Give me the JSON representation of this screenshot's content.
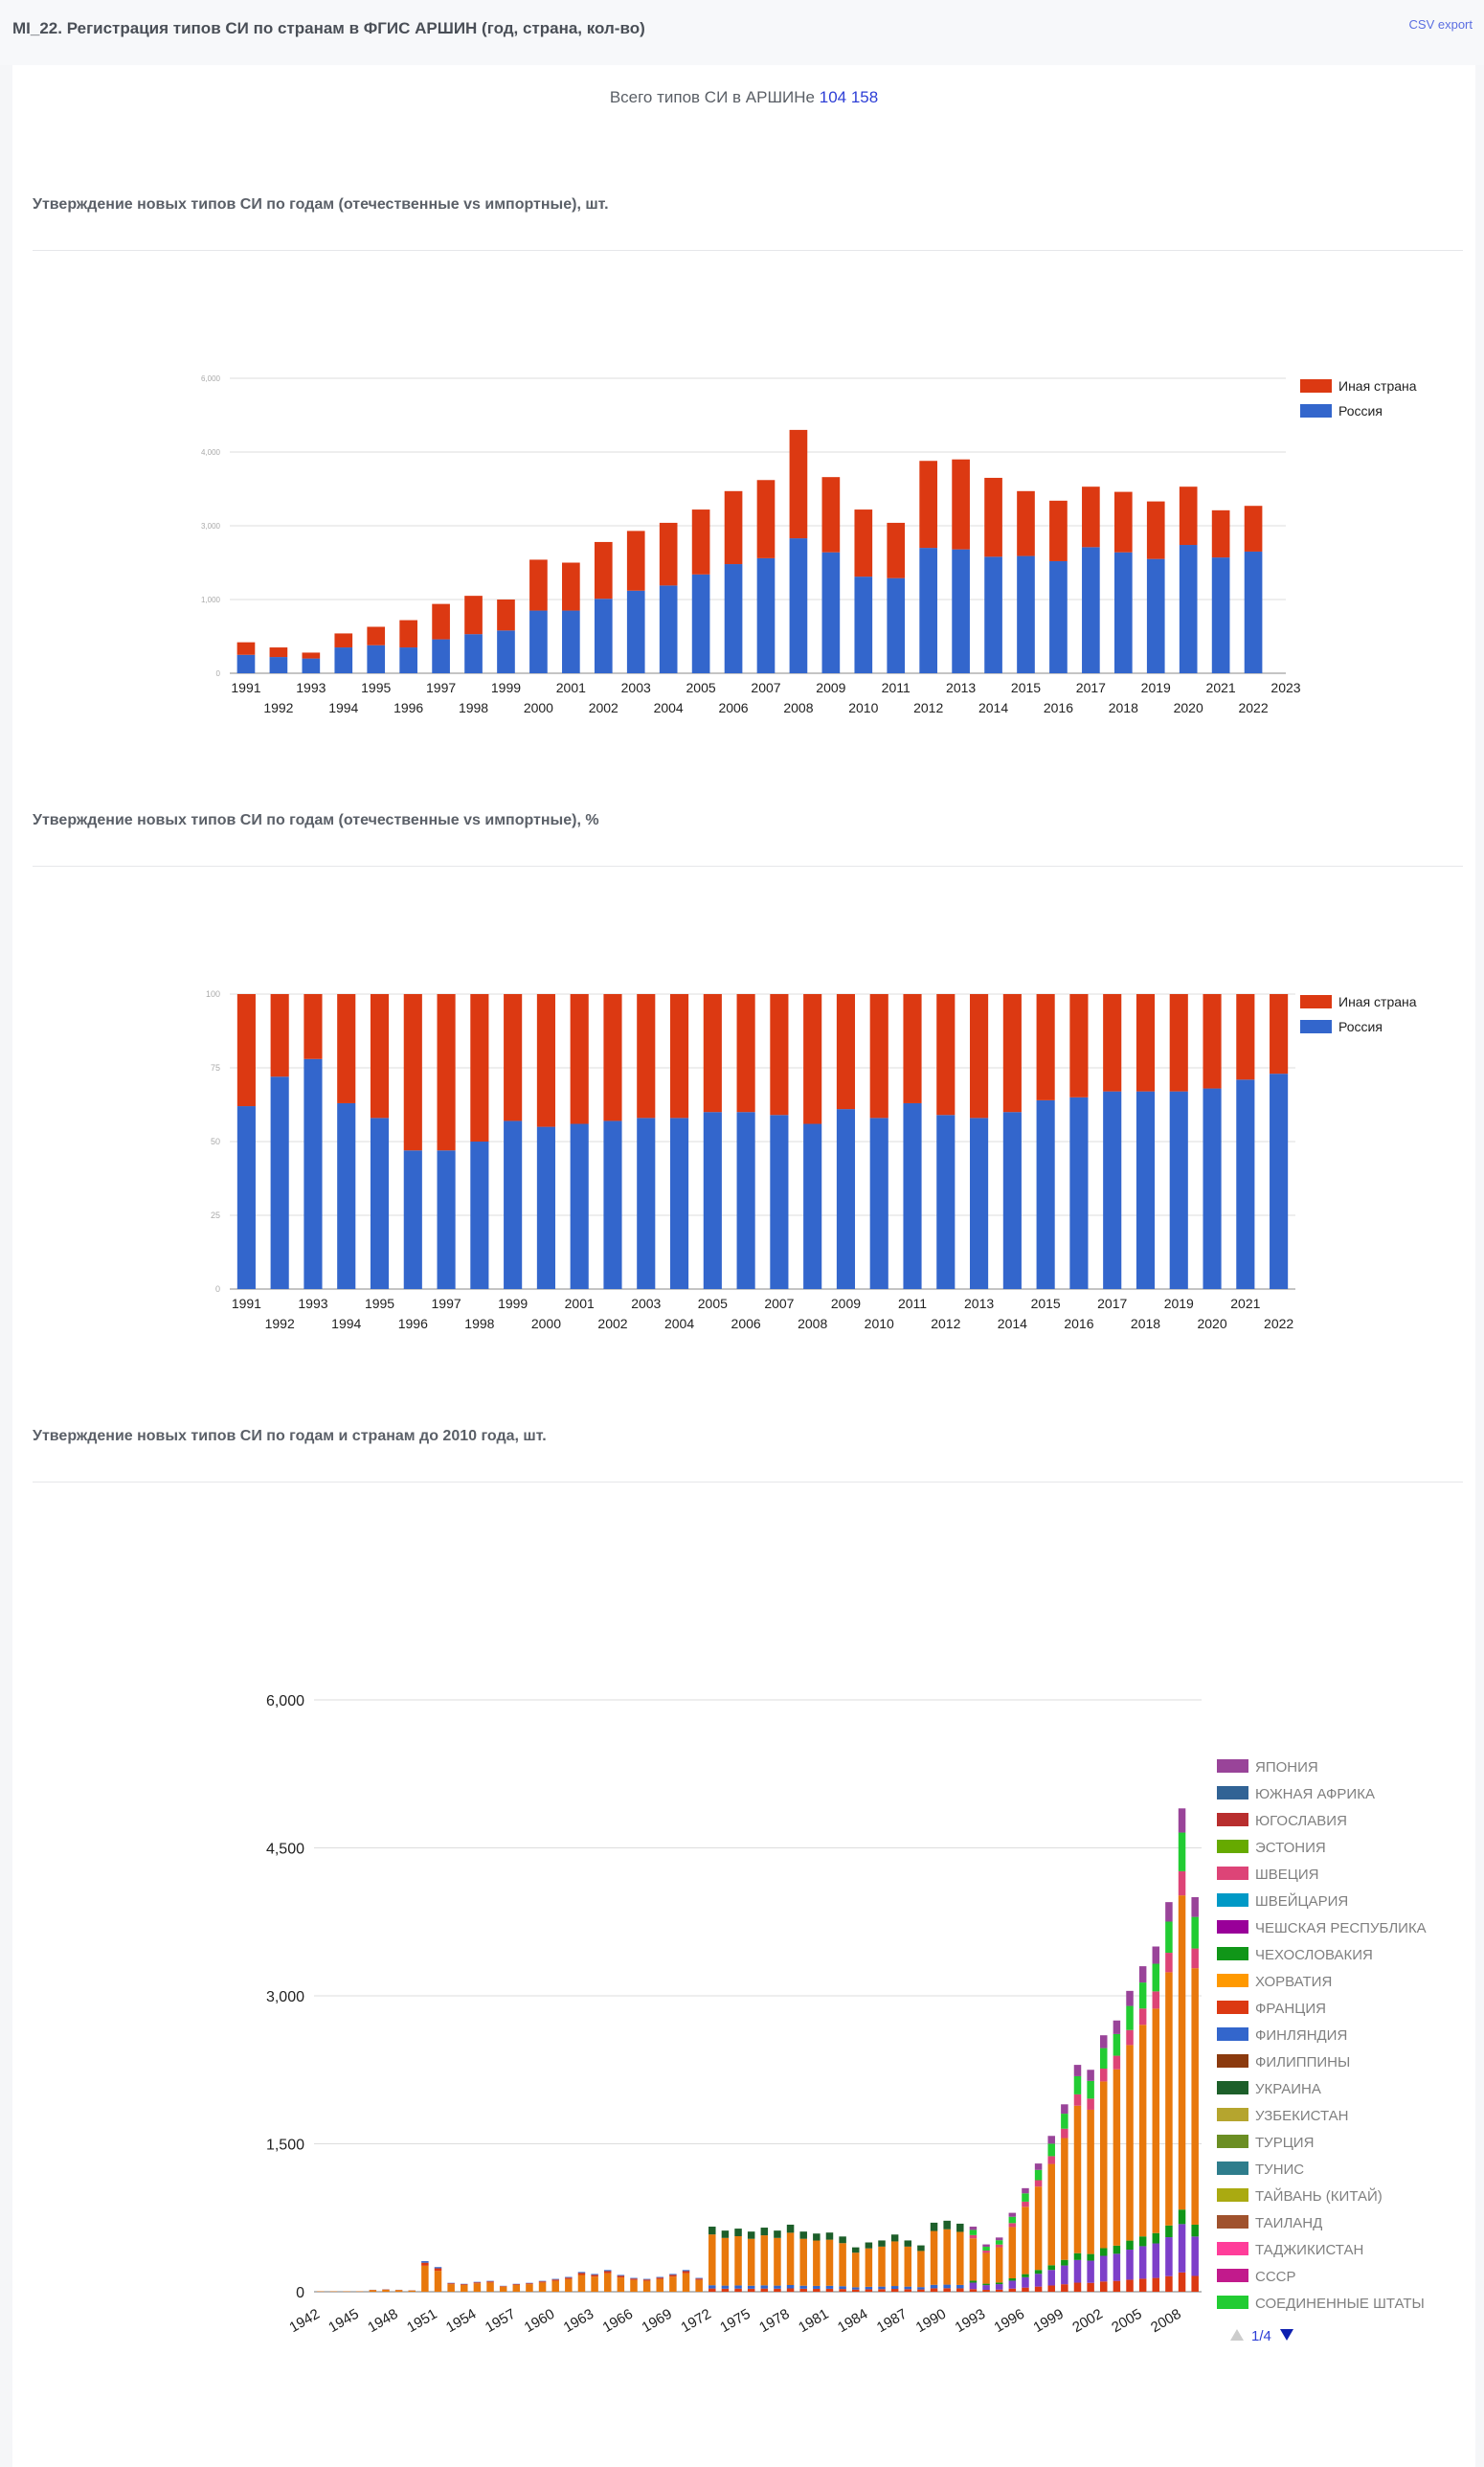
{
  "header": {
    "title": "MI_22. Регистрация типов СИ по странам в ФГИС АРШИН (год, страна, кол-во)",
    "csv_export": "CSV export"
  },
  "summary": {
    "label": "Всего типов СИ в АРШИНе",
    "value": "104 158"
  },
  "sections": [
    {
      "title": "Утверждение новых типов СИ по годам (отечественные vs импортные), шт."
    },
    {
      "title": "Утверждение новых типов СИ по годам (отечественные vs импортные), %"
    },
    {
      "title": "Утверждение новых типов СИ по годам и странам до 2010 года, шт."
    }
  ],
  "colors": {
    "russia": "#3366cc",
    "other": "#dc3912"
  },
  "chart_data": [
    {
      "type": "bar",
      "stacked": true,
      "title": "Утверждение новых типов СИ по годам (отечественные vs импортные), шт.",
      "categories": [
        "1991",
        "1992",
        "1993",
        "1994",
        "1995",
        "1996",
        "1997",
        "1998",
        "1999",
        "2000",
        "2001",
        "2002",
        "2003",
        "2004",
        "2005",
        "2006",
        "2007",
        "2008",
        "2009",
        "2010",
        "2011",
        "2012",
        "2013",
        "2014",
        "2015",
        "2016",
        "2017",
        "2018",
        "2019",
        "2020",
        "2021",
        "2022"
      ],
      "x_axis_extra_label": "2023",
      "y_ticks": [
        "0",
        "1,000",
        "3,000",
        "4,000",
        "6,000"
      ],
      "ylim": [
        0,
        4000
      ],
      "series": [
        {
          "name": "Россия",
          "values": [
            250,
            220,
            200,
            350,
            380,
            350,
            460,
            530,
            580,
            850,
            850,
            1010,
            1120,
            1190,
            1340,
            1480,
            1560,
            1830,
            1640,
            1310,
            1290,
            1700,
            1680,
            1580,
            1590,
            1520,
            1710,
            1640,
            1550,
            1740,
            1570,
            1650
          ]
        },
        {
          "name": "Иная страна",
          "values": [
            170,
            130,
            80,
            190,
            250,
            370,
            480,
            520,
            420,
            690,
            650,
            770,
            810,
            850,
            880,
            990,
            1060,
            1470,
            1020,
            910,
            750,
            1180,
            1220,
            1070,
            880,
            820,
            820,
            820,
            780,
            790,
            640,
            620
          ]
        }
      ],
      "legend": [
        "Иная страна",
        "Россия"
      ],
      "legend_position": "right"
    },
    {
      "type": "bar",
      "stacked": true,
      "title": "Утверждение новых типов СИ по годам (отечественные vs импортные), %",
      "categories": [
        "1991",
        "1992",
        "1993",
        "1994",
        "1995",
        "1996",
        "1997",
        "1998",
        "1999",
        "2000",
        "2001",
        "2002",
        "2003",
        "2004",
        "2005",
        "2006",
        "2007",
        "2008",
        "2009",
        "2010",
        "2011",
        "2012",
        "2013",
        "2014",
        "2015",
        "2016",
        "2017",
        "2018",
        "2019",
        "2020",
        "2021",
        "2022"
      ],
      "y_ticks": [
        "0",
        "25",
        "50",
        "75",
        "100"
      ],
      "ylim": [
        0,
        100
      ],
      "series": [
        {
          "name": "Россия",
          "values": [
            62,
            72,
            78,
            63,
            58,
            47,
            47,
            50,
            57,
            55,
            56,
            57,
            58,
            58,
            60,
            60,
            59,
            56,
            61,
            58,
            63,
            59,
            58,
            60,
            64,
            65,
            67,
            67,
            67,
            68,
            71,
            73
          ]
        },
        {
          "name": "Иная страна",
          "values": [
            38,
            28,
            22,
            37,
            42,
            53,
            53,
            50,
            43,
            45,
            44,
            43,
            42,
            42,
            40,
            40,
            41,
            44,
            39,
            42,
            37,
            41,
            42,
            40,
            36,
            35,
            33,
            33,
            33,
            32,
            29,
            27
          ]
        }
      ],
      "legend": [
        "Иная страна",
        "Россия"
      ],
      "legend_position": "right"
    },
    {
      "type": "bar",
      "stacked": true,
      "title": "Утверждение новых типов СИ по годам и странам до 2010 года, шт.",
      "x_tick_labels": [
        "1942",
        "1945",
        "1948",
        "1951",
        "1954",
        "1957",
        "1960",
        "1963",
        "1966",
        "1969",
        "1972",
        "1975",
        "1978",
        "1981",
        "1984",
        "1987",
        "1990",
        "1993",
        "1996",
        "1999",
        "2002",
        "2005",
        "2008"
      ],
      "x_start": 1942,
      "totals": [
        5,
        5,
        5,
        5,
        20,
        25,
        20,
        15,
        310,
        250,
        90,
        80,
        100,
        110,
        60,
        80,
        90,
        110,
        130,
        150,
        200,
        180,
        220,
        170,
        140,
        130,
        150,
        180,
        220,
        140,
        660,
        620,
        640,
        610,
        650,
        620,
        680,
        610,
        590,
        600,
        560,
        450,
        500,
        520,
        580,
        520,
        470,
        700,
        720,
        690,
        660,
        480,
        550,
        800,
        1050,
        1300,
        1580,
        1900,
        2300,
        2250,
        2600,
        2750,
        3050,
        3300,
        3500,
        3950,
        4900,
        4000
      ],
      "y_ticks": [
        "0",
        "1,500",
        "3,000",
        "4,500",
        "6,000"
      ],
      "ylim": [
        0,
        6000
      ],
      "legend": [
        {
          "name": "ЯПОНИЯ",
          "color": "#994499"
        },
        {
          "name": "ЮЖНАЯ АФРИКА",
          "color": "#316395"
        },
        {
          "name": "ЮГОСЛАВИЯ",
          "color": "#b82e2e"
        },
        {
          "name": "ЭСТОНИЯ",
          "color": "#66aa00"
        },
        {
          "name": "ШВЕЦИЯ",
          "color": "#dd4477"
        },
        {
          "name": "ШВЕЙЦАРИЯ",
          "color": "#0099c6"
        },
        {
          "name": "ЧЕШСКАЯ РЕСПУБЛИКА",
          "color": "#990099"
        },
        {
          "name": "ЧЕХОСЛОВАКИЯ",
          "color": "#109618"
        },
        {
          "name": "ХОРВАТИЯ",
          "color": "#ff9900"
        },
        {
          "name": "ФРАНЦИЯ",
          "color": "#dc3912"
        },
        {
          "name": "ФИНЛЯНДИЯ",
          "color": "#3366cc"
        },
        {
          "name": "ФИЛИППИНЫ",
          "color": "#8b3a0e"
        },
        {
          "name": "УКРАИНА",
          "color": "#1d5f2a"
        },
        {
          "name": "УЗБЕКИСТАН",
          "color": "#b5a52e"
        },
        {
          "name": "ТУРЦИЯ",
          "color": "#6b8e23"
        },
        {
          "name": "ТУНИС",
          "color": "#2e7d8c"
        },
        {
          "name": "ТАЙВАНЬ (КИТАЙ)",
          "color": "#aaaa11"
        },
        {
          "name": "ТАИЛАНД",
          "color": "#a0522d"
        },
        {
          "name": "ТАДЖИКИСТАН",
          "color": "#ff3d9a"
        },
        {
          "name": "СССР",
          "color": "#c21a8c"
        },
        {
          "name": "СОЕДИНЕННЫЕ ШТАТЫ",
          "color": "#22cc33"
        }
      ],
      "legend_page": "1/4",
      "legend_position": "right"
    }
  ]
}
